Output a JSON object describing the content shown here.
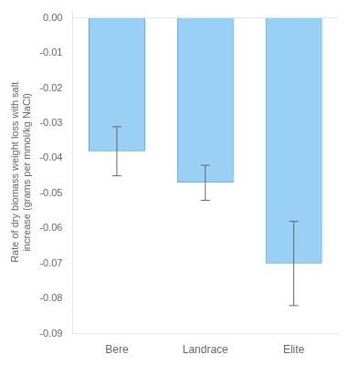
{
  "chart_data": {
    "type": "bar",
    "categories": [
      "Bere",
      "Landrace",
      "Elite"
    ],
    "values": [
      -0.038,
      -0.047,
      -0.07
    ],
    "errors": [
      0.007,
      0.005,
      0.012
    ],
    "ylabel": "Rate of dry biomass weight loss with salt\nincrease (grams per mmol/kg NaCl)",
    "ylim": [
      -0.09,
      0.002
    ],
    "yticks": [
      {
        "value": 0,
        "label": "0.00"
      },
      -0.01,
      -0.02,
      -0.03,
      -0.04,
      -0.05,
      -0.06,
      -0.07,
      -0.08,
      -0.09
    ],
    "grid": false
  }
}
